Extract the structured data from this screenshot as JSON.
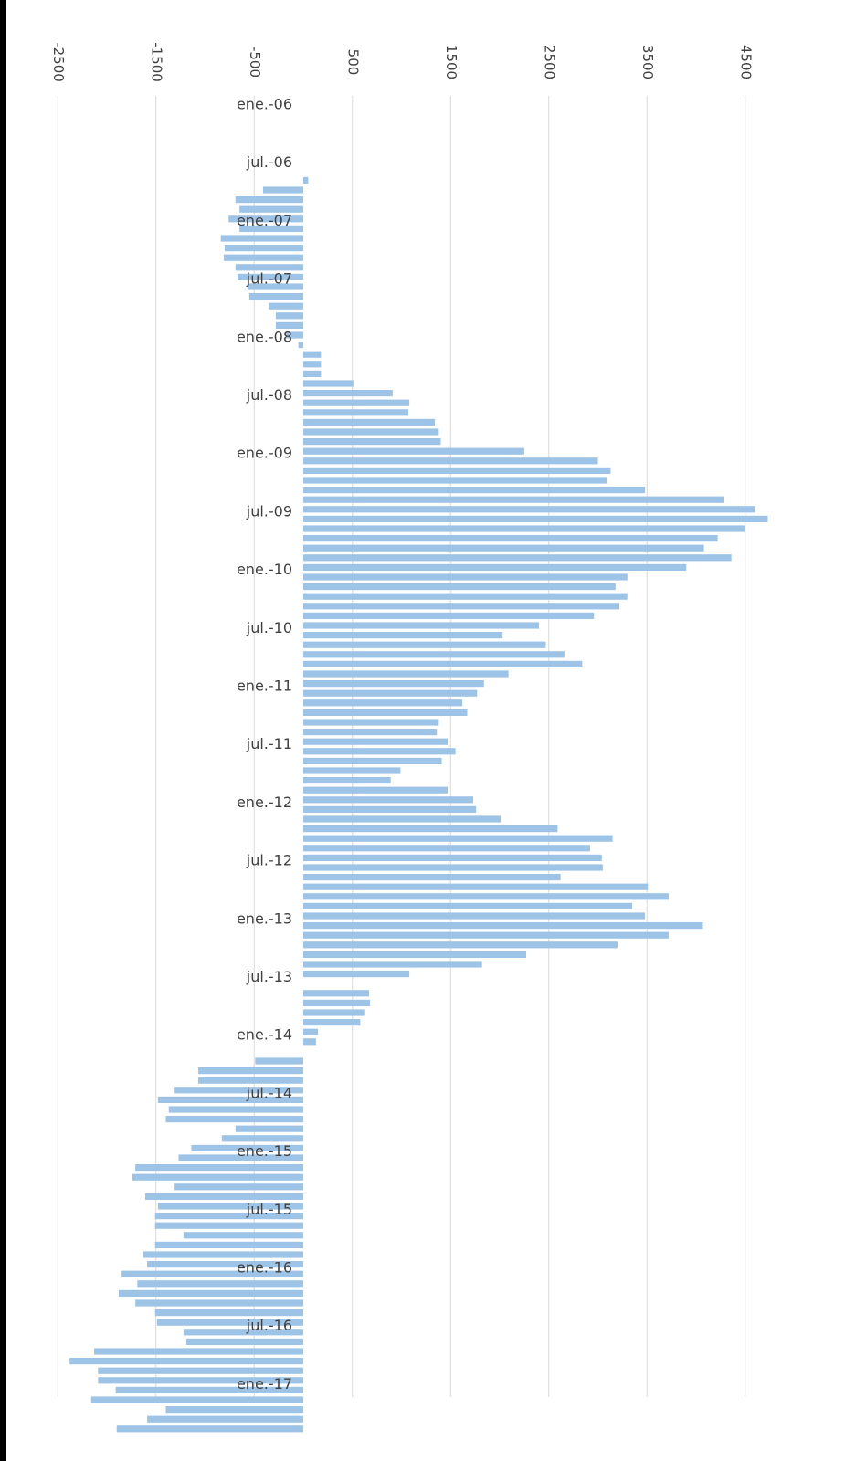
{
  "chart_data": {
    "type": "bar",
    "orientation": "horizontal",
    "grid": true,
    "xlim": [
      -2500,
      4500
    ],
    "xticks": [
      -2500,
      -1500,
      -500,
      500,
      1500,
      2500,
      3500,
      4500
    ],
    "xtick_labels": [
      "-2500",
      "-1500",
      "-500",
      "500",
      "1500",
      "2500",
      "3500",
      "4500"
    ],
    "category_labels": [
      "ene.-06",
      "jul.-06",
      "ene.-07",
      "jul.-07",
      "ene.-08",
      "jul.-08",
      "ene.-09",
      "jul.-09",
      "ene.-10",
      "jul.-10",
      "ene.-11",
      "jul.-11",
      "ene.-12",
      "jul.-12",
      "ene.-13",
      "jul.-13",
      "ene.-14",
      "jul.-14",
      "ene.-15",
      "jul.-15",
      "ene.-16",
      "jul.-16",
      "ene.-17"
    ],
    "bar_color": "#9dc3e6",
    "series": [
      {
        "values": [
          0,
          0,
          0,
          0,
          50,
          -410,
          -690,
          -650,
          -760,
          -650,
          -840,
          -800,
          -810,
          -690,
          -670,
          -570,
          -550,
          -350,
          -280,
          -280,
          -180,
          -50,
          180,
          180,
          180,
          510,
          910,
          1080,
          1070,
          1340,
          1380,
          1400,
          2250,
          3000,
          3130,
          3090,
          3480,
          4280,
          4600,
          4730,
          4500,
          4220,
          4080,
          4360,
          3900,
          3300,
          3180,
          3300,
          3220,
          2960,
          2400,
          2030,
          2470,
          2660,
          2840,
          2090,
          1840,
          1770,
          1620,
          1670,
          1380,
          1360,
          1470,
          1550,
          1410,
          990,
          890,
          1470,
          1730,
          1760,
          2010,
          2590,
          3150,
          2920,
          3040,
          3050,
          2620,
          3510,
          3720,
          3350,
          3480,
          4070,
          3720,
          3200,
          2270,
          1820,
          1080,
          0,
          670,
          680,
          630,
          580,
          150,
          130,
          0,
          -490,
          -1070,
          -1070,
          -1310,
          -1480,
          -1370,
          -1400,
          -690,
          -830,
          -1140,
          -1270,
          -1710,
          -1740,
          -1310,
          -1610,
          -1480,
          -1510,
          -1510,
          -1220,
          -1510,
          -1630,
          -1590,
          -1850,
          -1690,
          -1880,
          -1710,
          -1510,
          -1490,
          -1220,
          -1190,
          -2130,
          -2380,
          -2090,
          -2090,
          -1910,
          -2160,
          -1400,
          -1590,
          -1900
        ]
      }
    ]
  }
}
